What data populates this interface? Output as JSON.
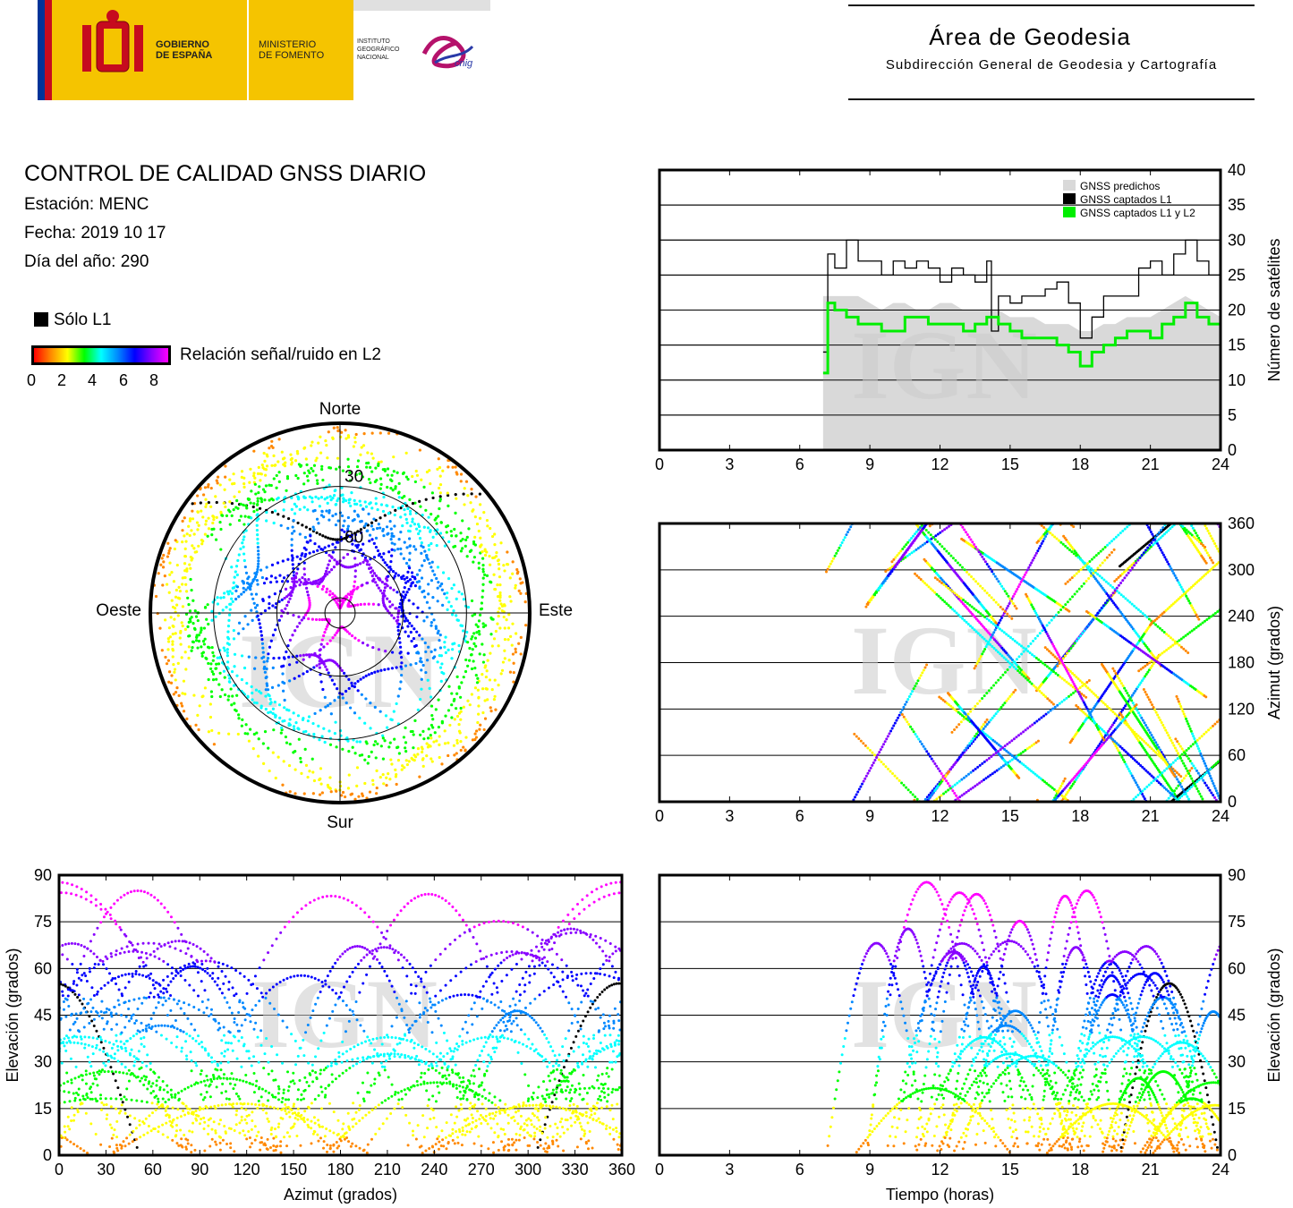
{
  "header": {
    "gobierno": "GOBIERNO\nDE ESPAÑA",
    "gobierno_l1": "GOBIERNO",
    "gobierno_l2": "DE ESPAÑA",
    "ministerio_l1": "MINISTERIO",
    "ministerio_l2": "DE FOMENTO",
    "instituto_l1": "INSTITUTO",
    "instituto_l2": "GEOGRÁFICO",
    "instituto_l3": "NACIONAL",
    "cnig": "cnig",
    "area_title": "Área de Geodesia",
    "area_subtitle": "Subdirección General de Geodesia y Cartografía",
    "colors": {
      "spain_red": "#c60b1e",
      "spain_yellow": "#f5c400",
      "eu_blue": "#003399"
    }
  },
  "report": {
    "title": "CONTROL DE CALIDAD GNSS DIARIO",
    "station": "Estación: MENC",
    "date": "Fecha: 2019 10 17",
    "doy": "Día del año: 290",
    "legend_l1only": "Sólo L1",
    "colorbar_label": "Relación señal/ruido en L2",
    "colorbar_ticks": [
      "0",
      "2",
      "4",
      "6",
      "8"
    ],
    "watermark": "IGN"
  },
  "chart_data": [
    {
      "type": "area",
      "ylabel": "Número de satélites",
      "x_ticks": [
        "0",
        "3",
        "6",
        "9",
        "12",
        "15",
        "18",
        "21",
        "24"
      ],
      "y_ticks": [
        "0",
        "5",
        "10",
        "15",
        "20",
        "25",
        "30",
        "35",
        "40"
      ],
      "xlim": [
        0,
        24
      ],
      "ylim": [
        0,
        40
      ],
      "legend": [
        "GNSS predichos",
        "GNSS captados L1",
        "GNSS captados L1 y L2"
      ],
      "series": [
        {
          "name": "GNSS predichos",
          "color": "#d9d9d9",
          "x": [
            7,
            7.5,
            8,
            8.5,
            9,
            9.5,
            10,
            10.5,
            11,
            11.5,
            12,
            12.5,
            13,
            13.5,
            14,
            14.5,
            15,
            15.5,
            16,
            16.5,
            17,
            17.5,
            18,
            18.5,
            19,
            19.5,
            20,
            20.5,
            21,
            21.5,
            22,
            22.5,
            23,
            23.5,
            24
          ],
          "values": [
            22,
            22,
            22,
            22,
            21,
            20,
            21,
            21,
            20,
            20,
            21,
            21,
            20,
            20,
            20,
            20,
            19,
            19,
            19,
            18,
            18,
            18,
            17,
            17,
            18,
            18,
            19,
            19,
            19,
            20,
            21,
            22,
            21,
            20,
            19
          ]
        },
        {
          "name": "GNSS captados L1",
          "color": "#000000",
          "x": [
            7,
            7.2,
            7.5,
            8,
            8.5,
            9,
            9.5,
            10,
            10.5,
            11,
            11.5,
            12,
            12.5,
            13,
            13.5,
            14,
            14.2,
            14.5,
            15,
            15.5,
            16,
            16.5,
            17,
            17.5,
            18,
            18.5,
            19,
            19.5,
            20,
            20.5,
            21,
            21.5,
            22,
            22.5,
            23,
            23.5,
            24
          ],
          "values": [
            14,
            28,
            26,
            30,
            27,
            27,
            25,
            27,
            26,
            27,
            26,
            24,
            26,
            25,
            24,
            27,
            17,
            22,
            21,
            22,
            22,
            23,
            24,
            21,
            16,
            19,
            22,
            22,
            22,
            26,
            27,
            25,
            28,
            30,
            27,
            25,
            26
          ]
        },
        {
          "name": "GNSS captados L1 y L2",
          "color": "#00ee00",
          "x": [
            7,
            7.2,
            7.5,
            8,
            8.5,
            9,
            9.5,
            10,
            10.5,
            11,
            11.5,
            12,
            12.5,
            13,
            13.5,
            14,
            14.5,
            15,
            15.5,
            16,
            16.5,
            17,
            17.5,
            18,
            18.5,
            19,
            19.5,
            20,
            20.5,
            21,
            21.5,
            22,
            22.5,
            23,
            23.5,
            24
          ],
          "values": [
            11,
            21,
            20,
            19,
            18,
            18,
            17,
            17,
            19,
            19,
            18,
            18,
            18,
            17,
            18,
            19,
            18,
            17,
            16,
            16,
            16,
            15,
            14,
            12,
            14,
            15,
            16,
            17,
            17,
            16,
            18,
            19,
            21,
            19,
            18,
            17
          ]
        }
      ]
    },
    {
      "type": "scatter",
      "subtype": "polar-skyplot",
      "direction_labels": {
        "north": "Norte",
        "south": "Sur",
        "west": "Oeste",
        "east": "Este"
      },
      "ring_labels": [
        "30",
        "60"
      ],
      "rings_elevation": [
        30,
        60
      ]
    },
    {
      "type": "scatter",
      "ylabel": "Azimut (grados)",
      "x_ticks": [
        "0",
        "3",
        "6",
        "9",
        "12",
        "15",
        "18",
        "21",
        "24"
      ],
      "y_ticks": [
        "0",
        "60",
        "120",
        "180",
        "240",
        "300",
        "360"
      ],
      "xlim": [
        0,
        24
      ],
      "ylim": [
        0,
        360
      ]
    },
    {
      "type": "scatter",
      "xlabel": "Azimut (grados)",
      "ylabel": "Elevación (grados)",
      "x_ticks": [
        "0",
        "30",
        "60",
        "90",
        "120",
        "150",
        "180",
        "210",
        "240",
        "270",
        "300",
        "330",
        "360"
      ],
      "y_ticks": [
        "0",
        "15",
        "30",
        "45",
        "60",
        "75",
        "90"
      ],
      "xlim": [
        0,
        360
      ],
      "ylim": [
        0,
        90
      ]
    },
    {
      "type": "scatter",
      "xlabel": "Tiempo (horas)",
      "ylabel": "Elevación (grados)",
      "x_ticks": [
        "0",
        "3",
        "6",
        "9",
        "12",
        "15",
        "18",
        "21",
        "24"
      ],
      "y_ticks": [
        "0",
        "15",
        "30",
        "45",
        "60",
        "75",
        "90"
      ],
      "xlim": [
        0,
        24
      ],
      "ylim": [
        0,
        90
      ]
    }
  ]
}
